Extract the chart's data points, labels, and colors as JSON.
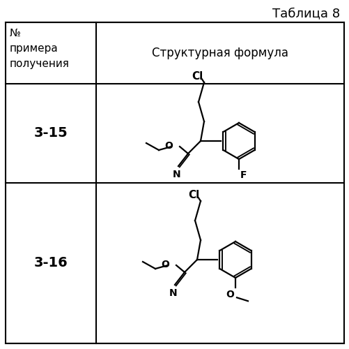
{
  "title": "Таблица 8",
  "col1_header": "№\nпримера\nполучения",
  "col2_header": "Структурная формула",
  "row1_label": "3‑15",
  "row2_label": "3‑16",
  "background": "#ffffff",
  "border_color": "#000000",
  "title_fontsize": 13,
  "header_fontsize": 11,
  "label_fontsize": 14
}
